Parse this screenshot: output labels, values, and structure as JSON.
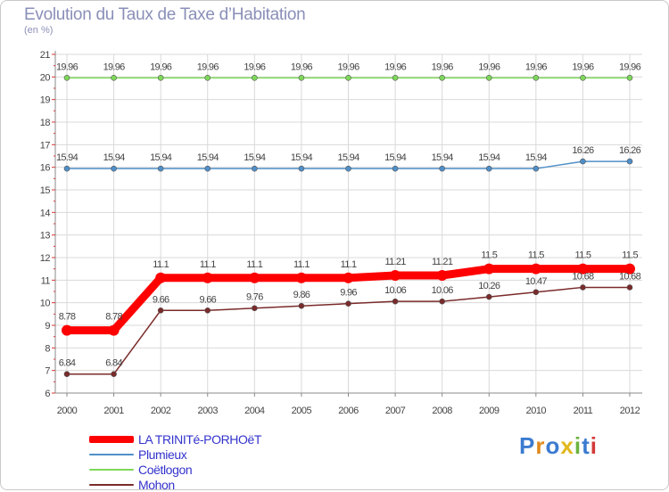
{
  "title": "Evolution du Taux de Taxe d’Habitation",
  "subtitle": "(en %)",
  "chart_data": {
    "type": "line",
    "x": [
      "2000",
      "2001",
      "2002",
      "2003",
      "2004",
      "2005",
      "2006",
      "2007",
      "2008",
      "2009",
      "2010",
      "2011",
      "2012"
    ],
    "ylim": [
      6,
      21
    ],
    "yticks": [
      6,
      7,
      8,
      9,
      10,
      11,
      12,
      13,
      14,
      15,
      16,
      17,
      18,
      19,
      20,
      21
    ],
    "grid": true,
    "legend_position": "bottom-left",
    "series": [
      {
        "name": "LA TRINITé-PORHOëT",
        "color": "#ff0000",
        "values": [
          8.78,
          8.78,
          11.1,
          11.1,
          11.1,
          11.1,
          11.1,
          11.21,
          11.21,
          11.5,
          11.5,
          11.5,
          11.5
        ],
        "labels": [
          "8.78",
          "8.78",
          "11.1",
          "11.1",
          "11.1",
          "11.1",
          "11.1",
          "11.21",
          "11.21",
          "11.5",
          "11.5",
          "11.5",
          "11.5"
        ]
      },
      {
        "name": "Plumieux",
        "color": "#4f8fc9",
        "values": [
          15.94,
          15.94,
          15.94,
          15.94,
          15.94,
          15.94,
          15.94,
          15.94,
          15.94,
          15.94,
          15.94,
          16.26,
          16.26
        ],
        "labels": [
          "15.94",
          "15.94",
          "15.94",
          "15.94",
          "15.94",
          "15.94",
          "15.94",
          "15.94",
          "15.94",
          "15.94",
          "15.94",
          "16.26",
          "16.26"
        ]
      },
      {
        "name": "Coëtlogon",
        "color": "#7dd85a",
        "values": [
          19.96,
          19.96,
          19.96,
          19.96,
          19.96,
          19.96,
          19.96,
          19.96,
          19.96,
          19.96,
          19.96,
          19.96,
          19.96
        ],
        "labels": [
          "19.96",
          "19.96",
          "19.96",
          "19.96",
          "19.96",
          "19.96",
          "19.96",
          "19.96",
          "19.96",
          "19.96",
          "19.96",
          "19.96",
          "19.96"
        ]
      },
      {
        "name": "Mohon",
        "color": "#7a2a2a",
        "values": [
          6.84,
          6.84,
          9.66,
          9.66,
          9.76,
          9.86,
          9.96,
          10.06,
          10.06,
          10.26,
          10.47,
          10.68,
          10.68
        ],
        "labels": [
          "6.84",
          "6.84",
          "9.66",
          "9.66",
          "9.76",
          "9.86",
          "9.96",
          "10.06",
          "10.06",
          "10.26",
          "10.47",
          "10.68",
          "10.68"
        ]
      }
    ]
  },
  "logo": {
    "text": "Proxiti"
  }
}
